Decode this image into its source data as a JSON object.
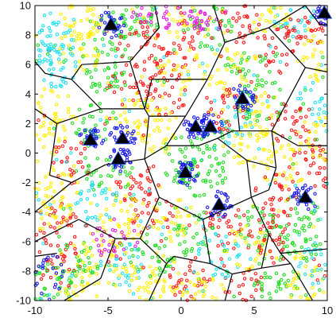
{
  "chart_data": {
    "type": "scatter",
    "title": "",
    "xlabel": "",
    "ylabel": "",
    "xlim": [
      -10,
      10
    ],
    "ylim": [
      -10,
      10
    ],
    "x_ticks": [
      -10,
      -5,
      0,
      5,
      10
    ],
    "y_ticks": [
      -10,
      -8,
      -6,
      -4,
      -2,
      0,
      2,
      4,
      6,
      8,
      10
    ],
    "grid": false,
    "legend": "none",
    "series_colors": {
      "red": "#ff1a1a",
      "green": "#22dd22",
      "yellow": "#ffee00",
      "cyan": "#22e0ee",
      "blue": "#1a1ae6",
      "magenta": "#e020e0"
    },
    "base_stations": [
      {
        "x": -4.8,
        "y": 8.7
      },
      {
        "x": 9.8,
        "y": 9.5
      },
      {
        "x": 4.2,
        "y": 3.7
      },
      {
        "x": 1.0,
        "y": 1.8
      },
      {
        "x": 2.0,
        "y": 1.8
      },
      {
        "x": -6.2,
        "y": 0.9
      },
      {
        "x": -4.0,
        "y": 1.0
      },
      {
        "x": -4.3,
        "y": -0.4
      },
      {
        "x": 0.3,
        "y": -1.3
      },
      {
        "x": 2.6,
        "y": -3.5
      },
      {
        "x": 8.5,
        "y": -3.0
      }
    ],
    "voronoi_edges": [
      [
        [
          -10,
          6.2
        ],
        [
          -9.3,
          5.4
        ]
      ],
      [
        [
          -9.3,
          5.4
        ],
        [
          -7.5,
          5.0
        ]
      ],
      [
        [
          -7.5,
          5.0
        ],
        [
          -6.8,
          6.0
        ]
      ],
      [
        [
          -6.8,
          6.0
        ],
        [
          -3.5,
          6.2
        ]
      ],
      [
        [
          -3.5,
          6.2
        ],
        [
          -1.5,
          8.5
        ]
      ],
      [
        [
          -1.5,
          8.5
        ],
        [
          -1.8,
          10
        ]
      ],
      [
        [
          -7.5,
          5.0
        ],
        [
          -5.5,
          3.0
        ]
      ],
      [
        [
          -5.5,
          3.0
        ],
        [
          -2.5,
          3.0
        ]
      ],
      [
        [
          -2.5,
          3.0
        ],
        [
          -3.5,
          6.2
        ]
      ],
      [
        [
          -2.5,
          3.0
        ],
        [
          -2.0,
          5.0
        ]
      ],
      [
        [
          -2.0,
          5.0
        ],
        [
          1.8,
          5.0
        ]
      ],
      [
        [
          1.8,
          5.0
        ],
        [
          3.0,
          7.5
        ]
      ],
      [
        [
          3.0,
          7.5
        ],
        [
          2.2,
          10
        ]
      ],
      [
        [
          3.0,
          7.5
        ],
        [
          6.0,
          8.5
        ]
      ],
      [
        [
          6.0,
          8.5
        ],
        [
          8.5,
          10
        ]
      ],
      [
        [
          8.5,
          10
        ],
        [
          9.5,
          8.7
        ]
      ],
      [
        [
          9.5,
          8.7
        ],
        [
          10,
          8.7
        ]
      ],
      [
        [
          6.0,
          8.5
        ],
        [
          8.5,
          5.8
        ]
      ],
      [
        [
          8.5,
          5.8
        ],
        [
          10,
          5.5
        ]
      ],
      [
        [
          -10,
          3.0
        ],
        [
          -8.5,
          2.0
        ]
      ],
      [
        [
          -8.5,
          2.0
        ],
        [
          -5.5,
          3.0
        ]
      ],
      [
        [
          -8.5,
          2.0
        ],
        [
          -9.0,
          -1.5
        ]
      ],
      [
        [
          -9.0,
          -1.5
        ],
        [
          -7.5,
          -2.0
        ]
      ],
      [
        [
          -7.5,
          -2.0
        ],
        [
          -5.2,
          -0.8
        ]
      ],
      [
        [
          -5.2,
          -0.8
        ],
        [
          -2.5,
          -0.4
        ]
      ],
      [
        [
          -2.5,
          -0.4
        ],
        [
          -2.2,
          2.5
        ]
      ],
      [
        [
          -2.2,
          2.5
        ],
        [
          -2.5,
          3.0
        ]
      ],
      [
        [
          -2.2,
          2.5
        ],
        [
          0.3,
          2.5
        ]
      ],
      [
        [
          0.3,
          2.5
        ],
        [
          1.8,
          5.0
        ]
      ],
      [
        [
          0.3,
          2.5
        ],
        [
          -1.0,
          0.5
        ]
      ],
      [
        [
          -1.0,
          0.5
        ],
        [
          -2.5,
          -0.4
        ]
      ],
      [
        [
          -1.0,
          0.5
        ],
        [
          1.2,
          0.5
        ]
      ],
      [
        [
          1.2,
          0.5
        ],
        [
          2.5,
          1.0
        ]
      ],
      [
        [
          2.5,
          1.0
        ],
        [
          4.5,
          -0.5
        ]
      ],
      [
        [
          4.5,
          -0.5
        ],
        [
          6.5,
          -1.0
        ]
      ],
      [
        [
          2.5,
          1.0
        ],
        [
          3.5,
          1.5
        ]
      ],
      [
        [
          3.5,
          1.5
        ],
        [
          6.2,
          1.5
        ]
      ],
      [
        [
          6.2,
          1.5
        ],
        [
          8.5,
          5.8
        ]
      ],
      [
        [
          6.2,
          1.5
        ],
        [
          8.0,
          0.5
        ]
      ],
      [
        [
          8.0,
          0.5
        ],
        [
          10,
          0.5
        ]
      ],
      [
        [
          -2.5,
          -0.4
        ],
        [
          -1.5,
          -3.0
        ]
      ],
      [
        [
          -1.5,
          -3.0
        ],
        [
          -2.8,
          -5.8
        ]
      ],
      [
        [
          -2.8,
          -5.8
        ],
        [
          -1.0,
          -7.5
        ]
      ],
      [
        [
          -1.0,
          -7.5
        ],
        [
          -0.5,
          -7.0
        ]
      ],
      [
        [
          -0.5,
          -7.0
        ],
        [
          2.0,
          -7.5
        ]
      ],
      [
        [
          -1.5,
          -3.0
        ],
        [
          1.5,
          -4.5
        ]
      ],
      [
        [
          1.5,
          -4.5
        ],
        [
          2.0,
          -7.5
        ]
      ],
      [
        [
          1.5,
          -4.5
        ],
        [
          4.8,
          -3.0
        ]
      ],
      [
        [
          4.8,
          -3.0
        ],
        [
          4.5,
          -0.5
        ]
      ],
      [
        [
          4.8,
          -3.0
        ],
        [
          6.0,
          -5.5
        ]
      ],
      [
        [
          6.0,
          -5.5
        ],
        [
          6.8,
          -6.8
        ]
      ],
      [
        [
          6.8,
          -6.8
        ],
        [
          10,
          -6.5
        ]
      ],
      [
        [
          6.8,
          -6.8
        ],
        [
          7.5,
          -7.5
        ]
      ],
      [
        [
          7.5,
          -7.5
        ],
        [
          9.0,
          -10
        ]
      ],
      [
        [
          2.0,
          -7.5
        ],
        [
          3.5,
          -8.2
        ]
      ],
      [
        [
          3.5,
          -8.2
        ],
        [
          5.5,
          -7.8
        ]
      ],
      [
        [
          5.5,
          -7.8
        ],
        [
          6.0,
          -5.5
        ]
      ],
      [
        [
          3.5,
          -8.2
        ],
        [
          3.0,
          -10
        ]
      ],
      [
        [
          5.5,
          -7.8
        ],
        [
          7.5,
          -7.5
        ]
      ],
      [
        [
          -1.0,
          -7.5
        ],
        [
          -2.2,
          -10
        ]
      ],
      [
        [
          -10,
          -4.0
        ],
        [
          -7.5,
          -2.0
        ]
      ],
      [
        [
          -10,
          -6.0
        ],
        [
          -7.0,
          -4.5
        ]
      ],
      [
        [
          -7.0,
          -4.5
        ],
        [
          -4.5,
          -5.8
        ]
      ],
      [
        [
          -4.5,
          -5.8
        ],
        [
          -2.8,
          -5.8
        ]
      ],
      [
        [
          -4.5,
          -5.8
        ],
        [
          -5.5,
          -8.5
        ]
      ],
      [
        [
          -5.5,
          -8.5
        ],
        [
          -8.0,
          -10
        ]
      ],
      [
        [
          -10,
          -7.0
        ],
        [
          -8.5,
          -6.8
        ]
      ],
      [
        [
          4.0,
          1.5
        ],
        [
          3.8,
          3.5
        ]
      ],
      [
        [
          6.5,
          -1.0
        ],
        [
          6.2,
          1.5
        ]
      ],
      [
        [
          6.5,
          -1.0
        ],
        [
          6.0,
          -2.5
        ]
      ],
      [
        [
          6.0,
          -2.5
        ],
        [
          4.8,
          -3.0
        ]
      ]
    ]
  }
}
